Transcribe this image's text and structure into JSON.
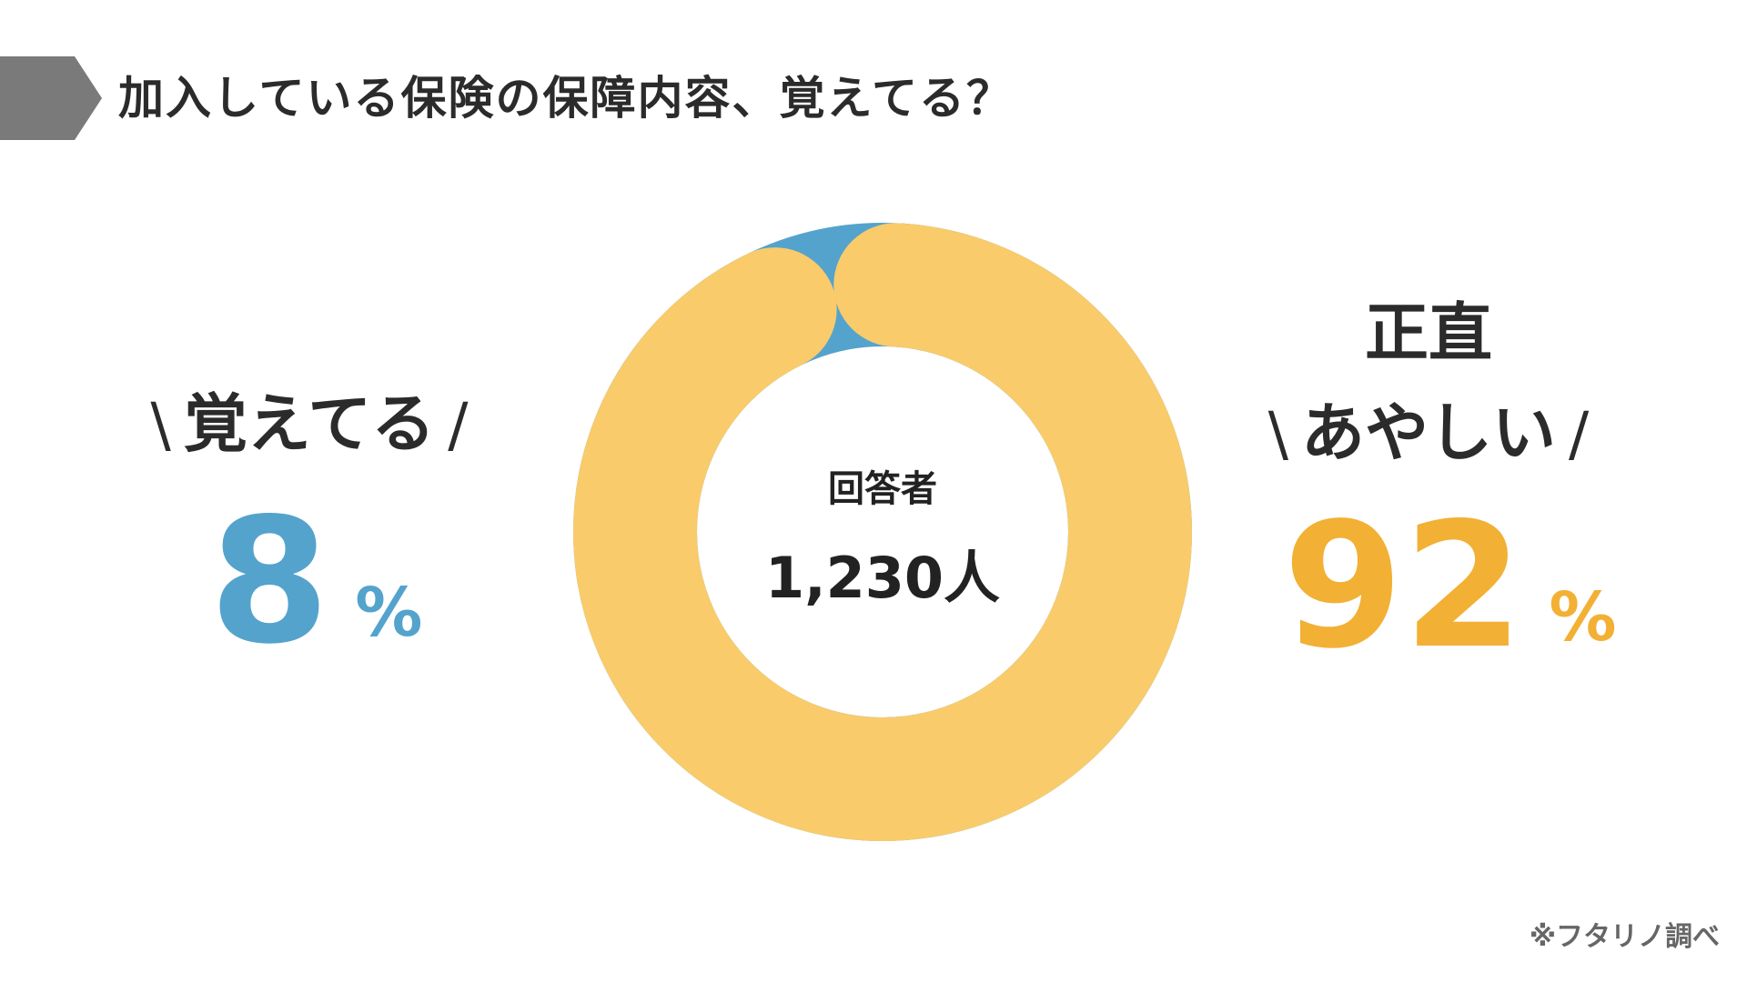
{
  "title": "加入している保険の保障内容、覚えてる？",
  "colors": {
    "header_bar": "#7a7a7a",
    "remember": "#54a3cc",
    "unsure": "#f9cb6b",
    "unsure_text": "#f2b034",
    "text": "#2b2b2b"
  },
  "center": {
    "label": "回答者",
    "value": "1,230人"
  },
  "left": {
    "slash_open": "\\",
    "label": "覚えてる",
    "slash_close": "/",
    "number": "8",
    "unit": "%"
  },
  "right": {
    "label_line1": "正直",
    "slash_open": "\\",
    "label_line2": "あやしい",
    "slash_close": "/",
    "number": "92",
    "unit": "%"
  },
  "source": "※フタリノ調べ",
  "chart_data": {
    "type": "pie",
    "categories": [
      "覚えてる",
      "正直あやしい"
    ],
    "values": [
      8,
      92
    ],
    "title": "加入している保険の保障内容、覚えてる？"
  }
}
